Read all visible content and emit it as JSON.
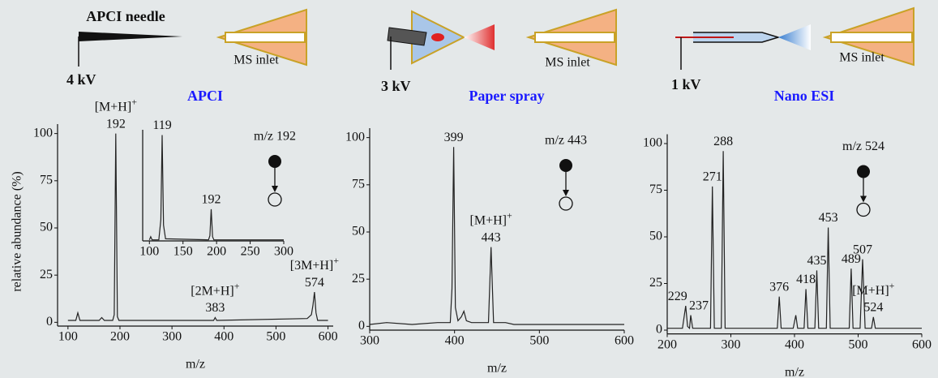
{
  "diagram": {
    "needle_label": "APCI needle",
    "voltages": [
      "4 kV",
      "3 kV",
      "1 kV"
    ],
    "inlet_labels": [
      "MS inlet",
      "MS inlet",
      "MS inlet"
    ]
  },
  "chart_data": [
    {
      "type": "line",
      "title": "APCI",
      "precursor": "m/z 192",
      "x_label": "m/z",
      "y_label": "relative abundance (%)",
      "color": "#222222",
      "x": [
        100,
        115,
        119,
        123,
        160,
        165,
        170,
        186,
        189,
        192,
        195,
        198,
        380,
        383,
        386,
        560,
        568,
        571,
        574,
        577,
        580,
        600
      ],
      "values": [
        1,
        1,
        5,
        1,
        1,
        2.5,
        1,
        1,
        4,
        100,
        3,
        1,
        1,
        2.5,
        1,
        2,
        4,
        9,
        16,
        5,
        1,
        1
      ],
      "xlim": [
        80,
        610
      ],
      "ylim": [
        -2,
        105
      ],
      "xticks": [
        100,
        200,
        300,
        400,
        500,
        600
      ],
      "yticks": [
        0,
        25,
        50,
        75,
        100
      ],
      "peak_labels": [
        192,
        383,
        574
      ],
      "ion_labels": [
        {
          "text": "[M+H]+",
          "x": 192
        },
        {
          "text": "[2M+H]+",
          "x": 383
        },
        {
          "text": "[3M+H]+",
          "x": 574
        }
      ]
    },
    {
      "type": "line",
      "color": "#222222",
      "x": [
        100,
        102,
        104,
        114,
        117,
        119,
        121,
        124,
        188,
        190,
        192,
        194,
        196,
        300
      ],
      "values": [
        1,
        4,
        1,
        1,
        20,
        100,
        15,
        2,
        1,
        5,
        30,
        4,
        1,
        1
      ],
      "xlim": [
        90,
        300
      ],
      "ylim": [
        0,
        105
      ],
      "xticks": [
        100,
        150,
        200,
        250,
        300
      ],
      "peak_labels": [
        119,
        192
      ]
    },
    {
      "type": "line",
      "title": "Paper spray",
      "precursor": "m/z 443",
      "x_label": "m/z",
      "color": "#222222",
      "x": [
        300,
        320,
        350,
        380,
        395,
        397,
        399,
        401,
        404,
        408,
        411,
        414,
        420,
        440,
        443,
        446,
        460,
        470,
        500,
        550,
        600
      ],
      "values": [
        1,
        2,
        1,
        2,
        2,
        20,
        95,
        10,
        3,
        5,
        8,
        3,
        2,
        2,
        42,
        2,
        2,
        1,
        1,
        1,
        1
      ],
      "xlim": [
        300,
        600
      ],
      "ylim": [
        -2,
        105
      ],
      "xticks": [
        300,
        400,
        500,
        600
      ],
      "yticks": [
        0,
        25,
        50,
        75,
        100
      ],
      "peak_labels": [
        399,
        443
      ],
      "ion_labels": [
        {
          "text": "[M+H]+",
          "x": 443
        }
      ]
    },
    {
      "type": "line",
      "title": "Nano ESI",
      "precursor": "m/z 524",
      "x_label": "m/z",
      "color": "#222222",
      "x": [
        200,
        224,
        229,
        232,
        235,
        237,
        240,
        268,
        271,
        274,
        285,
        288,
        291,
        373,
        376,
        379,
        398,
        402,
        405,
        415,
        418,
        421,
        432,
        435,
        438,
        450,
        453,
        456,
        486,
        489,
        492,
        503,
        507,
        511,
        521,
        524,
        527,
        600
      ],
      "values": [
        1,
        1,
        13,
        2,
        1,
        8,
        1,
        1,
        77,
        1,
        1,
        96,
        1,
        1,
        18,
        1,
        1,
        8,
        1,
        1,
        22,
        1,
        1,
        32,
        1,
        1,
        55,
        1,
        1,
        33,
        1,
        1,
        38,
        1,
        1,
        7,
        1,
        1
      ],
      "xlim": [
        200,
        600
      ],
      "ylim": [
        -2,
        105
      ],
      "xticks": [
        200,
        300,
        400,
        500,
        600
      ],
      "yticks": [
        0,
        25,
        50,
        75,
        100
      ],
      "peak_labels": [
        229,
        237,
        271,
        288,
        376,
        418,
        435,
        453,
        489,
        507,
        524
      ],
      "ion_labels": [
        {
          "text": "[M+H]+",
          "x": 524
        }
      ]
    }
  ]
}
